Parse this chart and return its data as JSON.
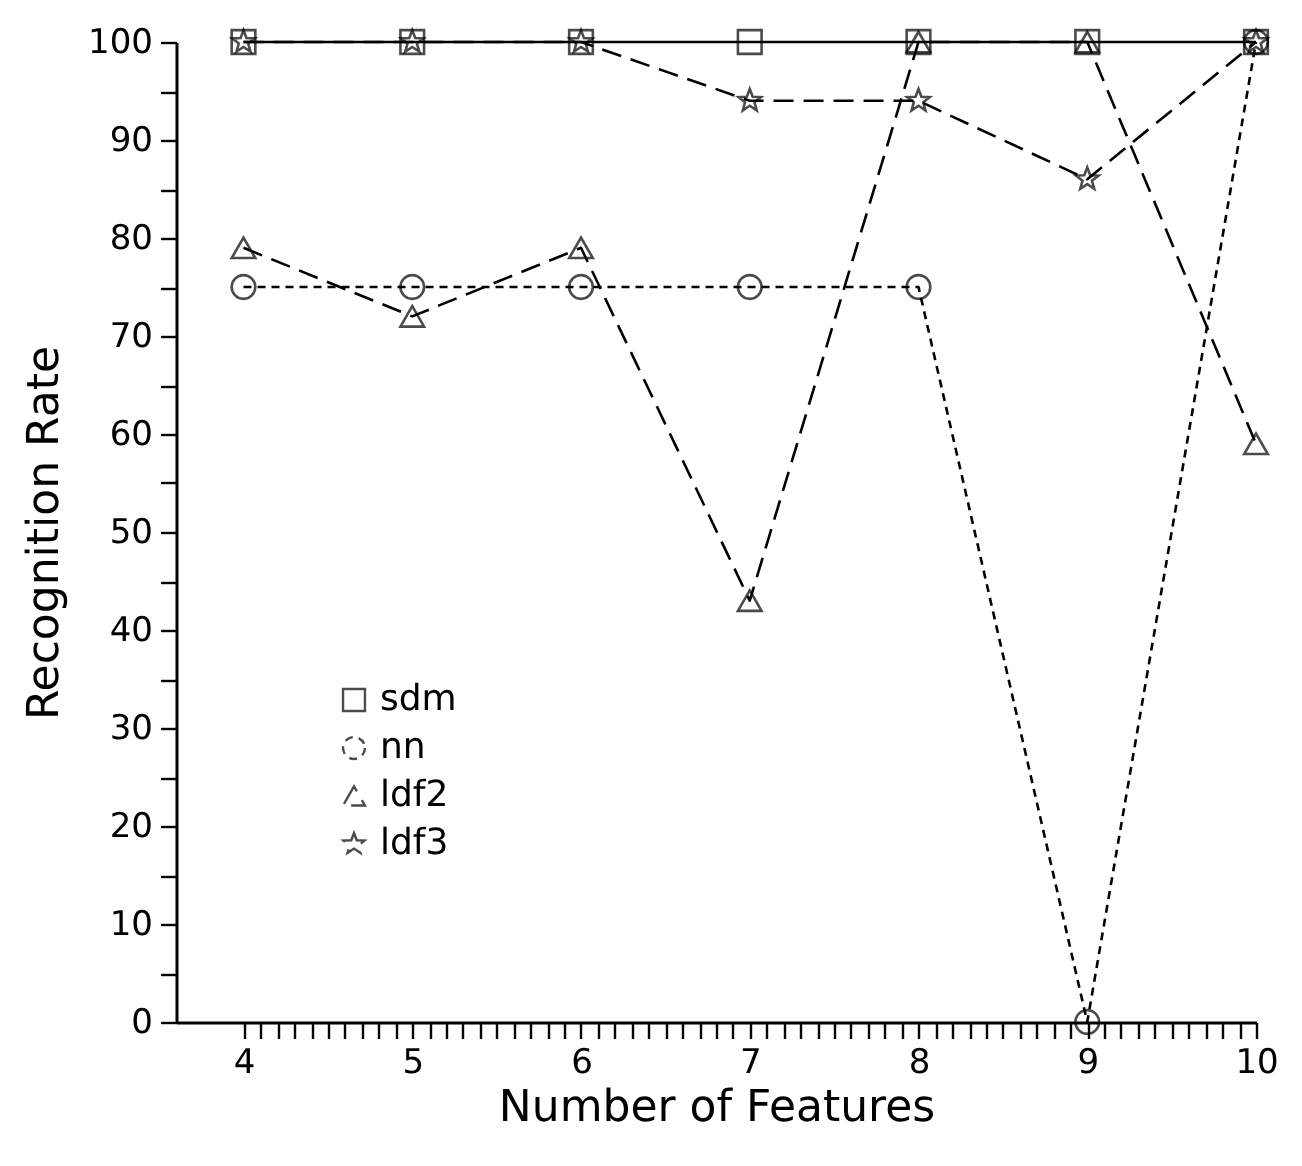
{
  "chart_data": {
    "type": "line",
    "xlabel": "Number of Features",
    "ylabel": "Recognition Rate",
    "x": [
      4,
      5,
      6,
      7,
      8,
      9,
      10
    ],
    "series": [
      {
        "name": "sdm",
        "color": "#000000",
        "marker": "square",
        "line_style": "solid",
        "values": [
          100,
          100,
          100,
          100,
          100,
          100,
          100
        ]
      },
      {
        "name": "nn",
        "color": "#000000",
        "marker": "circle",
        "line_style": "dotted",
        "values": [
          75,
          75,
          75,
          75,
          75,
          0,
          100
        ]
      },
      {
        "name": "ldf2",
        "color": "#000000",
        "marker": "triangle",
        "line_style": "dashed",
        "values": [
          79,
          72,
          79,
          43,
          100,
          100,
          59
        ]
      },
      {
        "name": "ldf3",
        "color": "#000000",
        "marker": "star",
        "line_style": "dashed",
        "values": [
          100,
          100,
          100,
          94,
          94,
          86,
          100
        ]
      }
    ],
    "xlim": [
      3.6,
      10
    ],
    "ylim": [
      0,
      100
    ],
    "xticks": [
      4,
      {
        "value": 4.1,
        "label": null
      },
      {
        "value": 4.2,
        "label": null
      },
      {
        "value": 4.3,
        "label": null
      },
      {
        "value": 4.4,
        "label": null
      },
      {
        "value": 4.5,
        "label": null
      },
      {
        "value": 4.6,
        "label": null
      },
      {
        "value": 4.7,
        "label": null
      },
      {
        "value": 4.8,
        "label": null
      },
      {
        "value": 4.9,
        "label": null
      },
      5,
      {
        "value": 5.1,
        "label": null
      },
      {
        "value": 5.2,
        "label": null
      },
      {
        "value": 5.3,
        "label": null
      },
      {
        "value": 5.4,
        "label": null
      },
      {
        "value": 5.5,
        "label": null
      },
      {
        "value": 5.6,
        "label": null
      },
      {
        "value": 5.7,
        "label": null
      },
      {
        "value": 5.8,
        "label": null
      },
      {
        "value": 5.9,
        "label": null
      },
      6,
      {
        "value": 6.1,
        "label": null
      },
      {
        "value": 6.2,
        "label": null
      },
      {
        "value": 6.3,
        "label": null
      },
      {
        "value": 6.4,
        "label": null
      },
      {
        "value": 6.5,
        "label": null
      },
      {
        "value": 6.6,
        "label": null
      },
      {
        "value": 6.7,
        "label": null
      },
      {
        "value": 6.8,
        "label": null
      },
      {
        "value": 6.9,
        "label": null
      },
      7,
      {
        "value": 7.1,
        "label": null
      },
      {
        "value": 7.2,
        "label": null
      },
      {
        "value": 7.3,
        "label": null
      },
      {
        "value": 7.4,
        "label": null
      },
      {
        "value": 7.5,
        "label": null
      },
      {
        "value": 7.6,
        "label": null
      },
      {
        "value": 7.7,
        "label": null
      },
      {
        "value": 7.8,
        "label": null
      },
      {
        "value": 7.9,
        "label": null
      },
      8,
      {
        "value": 8.1,
        "label": null
      },
      {
        "value": 8.2,
        "label": null
      },
      {
        "value": 8.3,
        "label": null
      },
      {
        "value": 8.4,
        "label": null
      },
      {
        "value": 8.5,
        "label": null
      },
      {
        "value": 8.6,
        "label": null
      },
      {
        "value": 8.7,
        "label": null
      },
      {
        "value": 8.8,
        "label": null
      },
      {
        "value": 8.9,
        "label": null
      },
      9,
      {
        "value": 9.1,
        "label": null
      },
      {
        "value": 9.2,
        "label": null
      },
      {
        "value": 9.3,
        "label": null
      },
      {
        "value": 9.4,
        "label": null
      },
      {
        "value": 9.5,
        "label": null
      },
      {
        "value": 9.6,
        "label": null
      },
      {
        "value": 9.7,
        "label": null
      },
      {
        "value": 9.8,
        "label": null
      },
      {
        "value": 9.9,
        "label": null
      },
      10
    ],
    "yticks": [
      0,
      {
        "value": 5,
        "label": null
      },
      10,
      {
        "value": 15,
        "label": null
      },
      20,
      {
        "value": 25,
        "label": null
      },
      30,
      {
        "value": 35,
        "label": null
      },
      40,
      {
        "value": 45,
        "label": null
      },
      50,
      {
        "value": 55,
        "label": null
      },
      60,
      {
        "value": 65,
        "label": null
      },
      70,
      {
        "value": 75,
        "label": null
      },
      80,
      {
        "value": 85,
        "label": null
      },
      90,
      {
        "value": 95,
        "label": null
      },
      100
    ],
    "grid": false,
    "legend": "bottom left"
  }
}
